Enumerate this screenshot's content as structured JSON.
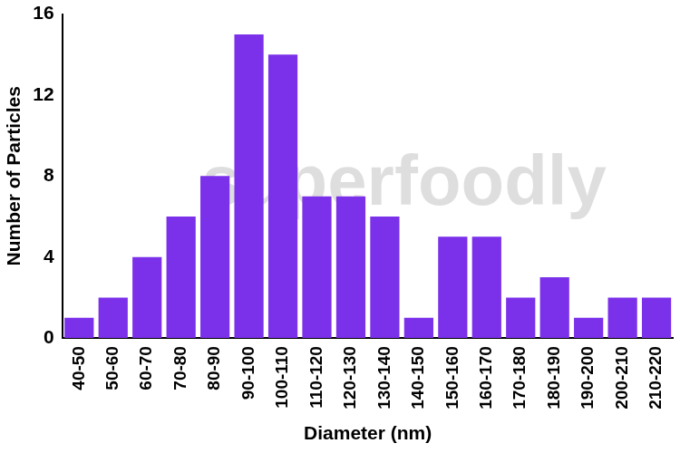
{
  "chart_data": {
    "type": "bar",
    "categories": [
      "40-50",
      "50-60",
      "60-70",
      "70-80",
      "80-90",
      "90-100",
      "100-110",
      "110-120",
      "120-130",
      "130-140",
      "140-150",
      "150-160",
      "160-170",
      "170-180",
      "180-190",
      "190-200",
      "200-210",
      "210-220"
    ],
    "values": [
      1,
      2,
      4,
      6,
      8,
      15,
      14,
      7,
      7,
      6,
      1,
      5,
      5,
      2,
      3,
      1,
      2,
      2
    ],
    "color": "#7b30ea",
    "x_label": "Diameter (nm)",
    "y_label": "Number of Particles",
    "ylim": [
      0,
      16
    ],
    "yticks": [
      0,
      4,
      8,
      12,
      16
    ],
    "grid": false,
    "annotations": [
      "superfoodly"
    ]
  }
}
